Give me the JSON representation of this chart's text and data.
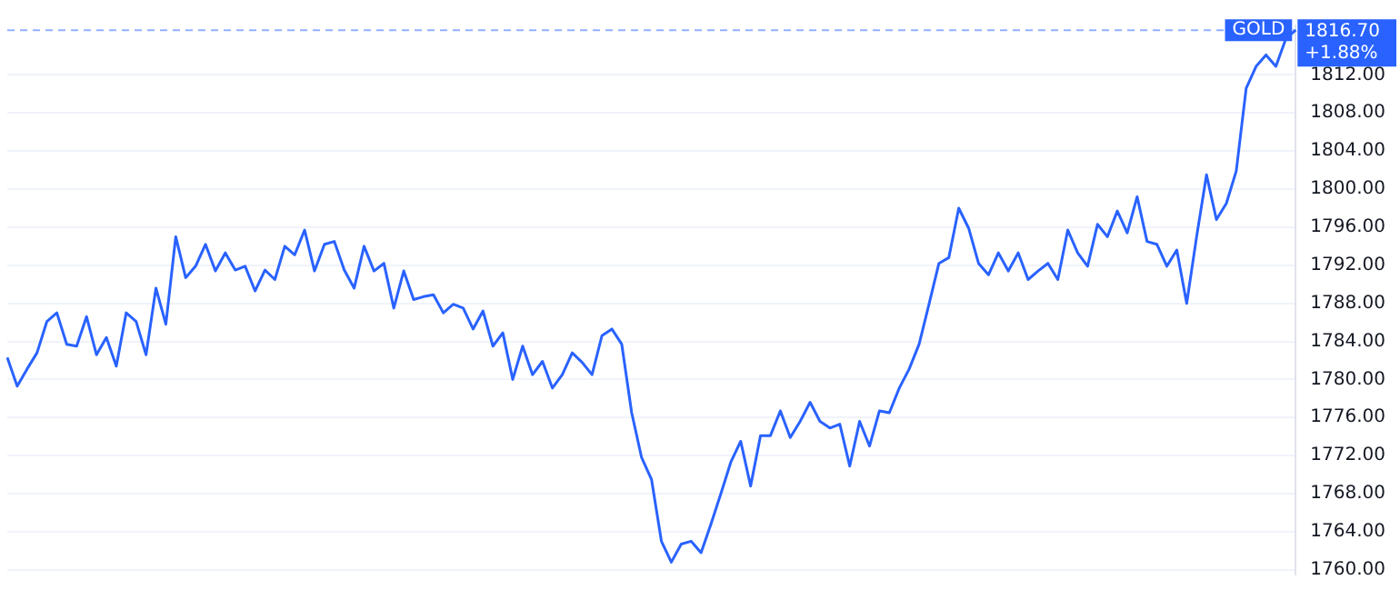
{
  "chart_data": {
    "type": "line",
    "categories": [
      null,
      null,
      null,
      null,
      null,
      null,
      null,
      null,
      null,
      null,
      null,
      null,
      null,
      null,
      null,
      null,
      null,
      null,
      null,
      null,
      null,
      null,
      null,
      null,
      null,
      null,
      null,
      null,
      null,
      null,
      null,
      null,
      null,
      null,
      null,
      null,
      null,
      null,
      null,
      null,
      null,
      null,
      null,
      null,
      null,
      null,
      null,
      null,
      null,
      null,
      null,
      null,
      null,
      null,
      null,
      null,
      null,
      null,
      null,
      null,
      null,
      null,
      null,
      null,
      null,
      null,
      null,
      null,
      null,
      null,
      null,
      null,
      null,
      null,
      null,
      null,
      null,
      null,
      null,
      null,
      null,
      null,
      null,
      null,
      null,
      null,
      null,
      null,
      null,
      null,
      null,
      null,
      null,
      null,
      null,
      null,
      null,
      null,
      null,
      null,
      null,
      null,
      null,
      null,
      null,
      null,
      null,
      null,
      null,
      null,
      null,
      null,
      null,
      null,
      null,
      null,
      null,
      null,
      null,
      null,
      null,
      null,
      null,
      null,
      null,
      null,
      null,
      null,
      null,
      null,
      null
    ],
    "series": [
      {
        "name": "GOLD",
        "color": "#2962ff",
        "values": [
          1782.3,
          1779.3,
          1781.1,
          1782.8,
          1786.1,
          1787,
          1783.7,
          1783.5,
          1786.6,
          1782.6,
          1784.4,
          1781.4,
          1787,
          1786.1,
          1782.6,
          1789.6,
          1785.8,
          1795,
          1790.7,
          1791.9,
          1794.2,
          1791.4,
          1793.3,
          1791.5,
          1791.9,
          1789.3,
          1791.5,
          1790.5,
          1794,
          1793.1,
          1795.7,
          1791.4,
          1794.2,
          1794.5,
          1791.5,
          1789.6,
          1794,
          1791.4,
          1792.2,
          1787.5,
          1791.4,
          1788.4,
          1788.7,
          1788.9,
          1787,
          1787.9,
          1787.5,
          1785.3,
          1787.2,
          1783.5,
          1784.9,
          1780,
          1783.5,
          1780.5,
          1781.9,
          1779.1,
          1780.5,
          1782.8,
          1781.8,
          1780.5,
          1784.6,
          1785.3,
          1783.7,
          1776.5,
          1771.8,
          1769.5,
          1763,
          1760.8,
          1762.7,
          1763,
          1761.8,
          1764.8,
          1768,
          1771.3,
          1773.5,
          1768.8,
          1774.1,
          1774.1,
          1776.7,
          1773.9,
          1775.6,
          1777.6,
          1775.6,
          1774.9,
          1775.3,
          1770.9,
          1775.6,
          1773,
          1776.7,
          1776.5,
          1779.1,
          1781.1,
          1783.7,
          1787.9,
          1792.2,
          1792.8,
          1798,
          1795.9,
          1792.2,
          1791,
          1793.3,
          1791.4,
          1793.3,
          1790.5,
          1791.4,
          1792.2,
          1790.5,
          1795.7,
          1793.3,
          1791.9,
          1796.3,
          1795,
          1797.7,
          1795.4,
          1799.2,
          1794.5,
          1794.2,
          1791.9,
          1793.6,
          1788,
          1795,
          1801.5,
          1796.8,
          1798.5,
          1801.9,
          1810.6,
          1812.9,
          1814.1,
          1812.9,
          1815.8,
          1816.7
        ]
      }
    ],
    "ylim": [
      1759.5,
      1817.2
    ],
    "yticks": [
      {
        "value": 1760,
        "label": "1760.00"
      },
      {
        "value": 1764,
        "label": "1764.00"
      },
      {
        "value": 1768,
        "label": "1768.00"
      },
      {
        "value": 1772,
        "label": "1772.00"
      },
      {
        "value": 1776,
        "label": "1776.00"
      },
      {
        "value": 1780,
        "label": "1780.00"
      },
      {
        "value": 1784,
        "label": "1784.00"
      },
      {
        "value": 1788,
        "label": "1788.00"
      },
      {
        "value": 1792,
        "label": "1792.00"
      },
      {
        "value": 1796,
        "label": "1796.00"
      },
      {
        "value": 1800,
        "label": "1800.00"
      },
      {
        "value": 1804,
        "label": "1804.00"
      },
      {
        "value": 1808,
        "label": "1808.00"
      },
      {
        "value": 1812,
        "label": "1812.00"
      }
    ],
    "ref_lines": [
      {
        "axis": "y",
        "value": 1816.7,
        "label": "1816.70",
        "color": "#2962ff",
        "line_style": "dashed"
      }
    ],
    "annotations": [
      "+1.88%"
    ],
    "grid": "y",
    "legend": false,
    "marker": "none",
    "line_style": "solid"
  }
}
